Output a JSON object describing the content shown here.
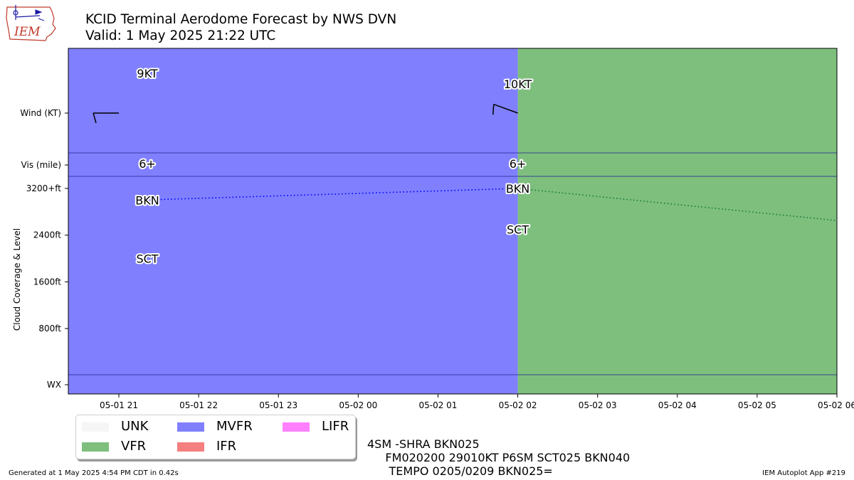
{
  "logo": {
    "text": "IEM"
  },
  "header": {
    "title": "KCID Terminal Aerodome Forecast by NWS DVN",
    "subtitle": "Valid: 1 May 2025 21:22 UTC"
  },
  "chart_data": {
    "type": "timeline",
    "x_ticks": [
      "05-01 21",
      "05-01 22",
      "05-01 23",
      "05-02 00",
      "05-02 01",
      "05-02 02",
      "05-02 03",
      "05-02 04",
      "05-02 05",
      "05-02 06"
    ],
    "x_range": [
      "2025-05-01 20:22",
      "2025-05-02 06:00"
    ],
    "rows": [
      "Wind (KT)",
      "Vis (mile)",
      "Cloud Coverage & Level",
      "WX"
    ],
    "ylabel": "Cloud Coverage & Level",
    "y_ticks": [
      "3200+ft",
      "2400ft",
      "1600ft",
      "800ft"
    ],
    "y_tick_values": [
      3200,
      2400,
      1600,
      800
    ],
    "cloud_range": [
      0,
      3200
    ],
    "wx_label": "WX",
    "colors": {
      "UNK": "#f5f5f5",
      "VFR": "#7ebf7e",
      "MVFR": "#8080ff",
      "IFR": "#f57f7f",
      "LIFR": "#ff80ff"
    },
    "categories": [
      {
        "from": "2025-05-01 20:22",
        "to": "2025-05-02 02:00",
        "category": "MVFR"
      },
      {
        "from": "2025-05-02 02:00",
        "to": "2025-05-02 06:00",
        "category": "VFR"
      }
    ],
    "forecasts": [
      {
        "valid": "2025-05-01 21:00",
        "wind": {
          "direction_deg": 270,
          "speed_kt": 9,
          "label": "9KT"
        },
        "vis_label": "6+",
        "clouds": [
          {
            "cover": "BKN",
            "level_ft": 3000
          },
          {
            "cover": "SCT",
            "level_ft": 2000
          }
        ]
      },
      {
        "valid": "2025-05-02 02:00",
        "wind": {
          "direction_deg": 290,
          "speed_kt": 10,
          "label": "10KT"
        },
        "vis_label": "6+",
        "clouds": [
          {
            "cover": "BKN",
            "level_ft": 3200
          },
          {
            "cover": "SCT",
            "level_ft": 2500
          }
        ]
      }
    ],
    "ceiling_trend": [
      {
        "time": "2025-05-01 21:00",
        "level_ft": 3000,
        "color": "#0000ff"
      },
      {
        "time": "2025-05-02 02:00",
        "level_ft": 3200,
        "color": "#0000ff"
      },
      {
        "time": "2025-05-02 06:00",
        "level_ft": 2650,
        "color": "#008000"
      }
    ]
  },
  "legend": {
    "items": [
      {
        "label": "UNK",
        "color": "#f5f5f5"
      },
      {
        "label": "VFR",
        "color": "#7ebf7e"
      },
      {
        "label": "MVFR",
        "color": "#8080ff"
      },
      {
        "label": "IFR",
        "color": "#f57f7f"
      },
      {
        "label": "LIFR",
        "color": "#ff80ff"
      }
    ]
  },
  "taf_text": {
    "line1": "4SM -SHRA BKN025",
    "line2": "     FM020200 29010KT P6SM SCT025 BKN040",
    "line3": "      TEMPO 0205/0209 BKN025="
  },
  "footer": {
    "generated": "Generated at 1 May 2025 4:54 PM CDT in 0.42s",
    "app": "IEM Autoplot App #219"
  }
}
